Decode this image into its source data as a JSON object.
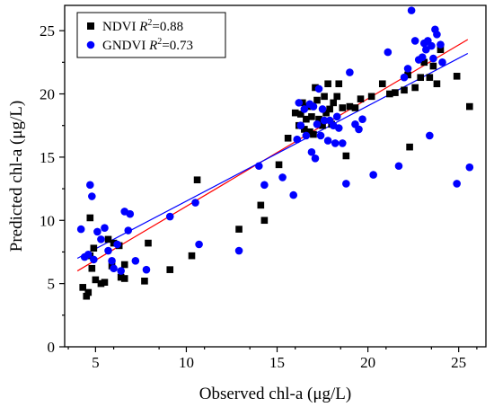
{
  "chart_data": {
    "type": "scatter",
    "title": "",
    "xlabel": "Observed chl-a (μg/L)",
    "ylabel": "Predicted chl-a (μg/L)",
    "xlim": [
      3.3,
      26.5
    ],
    "ylim": [
      0,
      27
    ],
    "xticks": [
      5,
      10,
      15,
      20,
      25
    ],
    "yticks": [
      0,
      5,
      10,
      15,
      20,
      25
    ],
    "grid": false,
    "legend_position": "top-left",
    "series": [
      {
        "name": "NDVI R²=0.88",
        "legend_label": "NDVI ",
        "legend_r2": "=0.88",
        "color": "#000000",
        "marker": "square",
        "points": [
          [
            4.3,
            4.7
          ],
          [
            4.5,
            4.0
          ],
          [
            4.6,
            4.3
          ],
          [
            4.7,
            7.2
          ],
          [
            4.7,
            10.2
          ],
          [
            4.8,
            6.2
          ],
          [
            4.9,
            7.8
          ],
          [
            5.0,
            5.3
          ],
          [
            5.3,
            5.0
          ],
          [
            5.5,
            5.1
          ],
          [
            5.7,
            8.5
          ],
          [
            5.9,
            6.4
          ],
          [
            6.0,
            8.2
          ],
          [
            6.3,
            8.0
          ],
          [
            6.4,
            5.5
          ],
          [
            6.6,
            6.5
          ],
          [
            6.6,
            5.4
          ],
          [
            7.7,
            5.2
          ],
          [
            7.9,
            8.2
          ],
          [
            9.1,
            6.1
          ],
          [
            10.3,
            7.2
          ],
          [
            10.6,
            13.2
          ],
          [
            12.9,
            9.3
          ],
          [
            14.1,
            11.2
          ],
          [
            14.3,
            10.0
          ],
          [
            15.1,
            14.4
          ],
          [
            15.6,
            16.5
          ],
          [
            16.0,
            18.5
          ],
          [
            16.2,
            17.5
          ],
          [
            16.3,
            18.4
          ],
          [
            16.4,
            19.3
          ],
          [
            16.5,
            17.2
          ],
          [
            16.6,
            18.0
          ],
          [
            16.7,
            19.0
          ],
          [
            16.8,
            17.0
          ],
          [
            16.9,
            18.2
          ],
          [
            17.0,
            16.8
          ],
          [
            17.1,
            20.5
          ],
          [
            17.2,
            19.5
          ],
          [
            17.3,
            18.0
          ],
          [
            17.5,
            17.5
          ],
          [
            17.6,
            19.8
          ],
          [
            17.7,
            18.5
          ],
          [
            17.8,
            20.8
          ],
          [
            17.9,
            18.8
          ],
          [
            18.0,
            17.6
          ],
          [
            18.1,
            19.3
          ],
          [
            18.3,
            19.8
          ],
          [
            18.4,
            20.8
          ],
          [
            18.6,
            18.9
          ],
          [
            18.8,
            15.1
          ],
          [
            19.0,
            19.0
          ],
          [
            19.3,
            18.9
          ],
          [
            19.6,
            19.6
          ],
          [
            20.2,
            19.8
          ],
          [
            20.8,
            20.8
          ],
          [
            21.2,
            20.0
          ],
          [
            21.5,
            20.1
          ],
          [
            22.0,
            20.3
          ],
          [
            22.2,
            21.5
          ],
          [
            22.3,
            15.8
          ],
          [
            22.6,
            20.5
          ],
          [
            22.9,
            21.3
          ],
          [
            23.1,
            22.5
          ],
          [
            23.4,
            21.3
          ],
          [
            23.6,
            22.2
          ],
          [
            23.8,
            20.8
          ],
          [
            24.0,
            23.5
          ],
          [
            24.9,
            21.4
          ],
          [
            25.6,
            19.0
          ]
        ],
        "fit": [
          [
            4.0,
            6.0
          ],
          [
            25.5,
            24.3
          ]
        ],
        "fit_color": "#ff0000"
      },
      {
        "name": "GNDVI R²=0.73",
        "legend_label": "GNDVI ",
        "legend_r2": "=0.73",
        "color": "#0000ff",
        "marker": "circle",
        "points": [
          [
            4.2,
            9.3
          ],
          [
            4.4,
            7.1
          ],
          [
            4.6,
            7.3
          ],
          [
            4.7,
            12.8
          ],
          [
            4.8,
            11.9
          ],
          [
            4.9,
            6.9
          ],
          [
            5.1,
            9.1
          ],
          [
            5.3,
            8.5
          ],
          [
            5.5,
            9.4
          ],
          [
            5.7,
            7.6
          ],
          [
            5.9,
            6.8
          ],
          [
            6.0,
            6.2
          ],
          [
            6.2,
            8.1
          ],
          [
            6.4,
            6.0
          ],
          [
            6.6,
            10.7
          ],
          [
            6.8,
            9.2
          ],
          [
            6.9,
            10.5
          ],
          [
            7.2,
            6.8
          ],
          [
            7.8,
            6.1
          ],
          [
            9.1,
            10.3
          ],
          [
            10.5,
            11.4
          ],
          [
            10.7,
            8.1
          ],
          [
            12.9,
            7.6
          ],
          [
            14.0,
            14.3
          ],
          [
            14.3,
            12.8
          ],
          [
            15.3,
            13.4
          ],
          [
            15.9,
            12.0
          ],
          [
            16.1,
            16.4
          ],
          [
            16.2,
            19.3
          ],
          [
            16.3,
            17.5
          ],
          [
            16.5,
            18.8
          ],
          [
            16.6,
            16.7
          ],
          [
            16.8,
            19.2
          ],
          [
            16.9,
            15.4
          ],
          [
            17.0,
            19.0
          ],
          [
            17.1,
            14.9
          ],
          [
            17.2,
            17.6
          ],
          [
            17.3,
            20.4
          ],
          [
            17.4,
            16.7
          ],
          [
            17.5,
            18.8
          ],
          [
            17.6,
            17.9
          ],
          [
            17.8,
            16.3
          ],
          [
            17.9,
            17.9
          ],
          [
            18.1,
            17.5
          ],
          [
            18.2,
            16.1
          ],
          [
            18.3,
            18.2
          ],
          [
            18.4,
            17.3
          ],
          [
            18.6,
            16.1
          ],
          [
            18.8,
            12.9
          ],
          [
            19.0,
            21.7
          ],
          [
            19.3,
            17.6
          ],
          [
            19.5,
            17.2
          ],
          [
            19.7,
            18.0
          ],
          [
            20.3,
            13.6
          ],
          [
            21.1,
            23.3
          ],
          [
            21.7,
            14.3
          ],
          [
            22.0,
            21.3
          ],
          [
            22.2,
            22.0
          ],
          [
            22.4,
            26.6
          ],
          [
            22.6,
            24.2
          ],
          [
            22.8,
            22.7
          ],
          [
            23.0,
            22.9
          ],
          [
            23.1,
            24.0
          ],
          [
            23.2,
            23.5
          ],
          [
            23.3,
            24.2
          ],
          [
            23.4,
            16.7
          ],
          [
            23.5,
            23.8
          ],
          [
            23.6,
            22.8
          ],
          [
            23.7,
            25.1
          ],
          [
            23.8,
            24.7
          ],
          [
            24.0,
            23.9
          ],
          [
            24.1,
            22.5
          ],
          [
            24.9,
            12.9
          ],
          [
            25.6,
            14.2
          ]
        ],
        "fit": [
          [
            4.0,
            7.0
          ],
          [
            25.5,
            23.2
          ]
        ],
        "fit_color": "#0000ff"
      }
    ]
  }
}
